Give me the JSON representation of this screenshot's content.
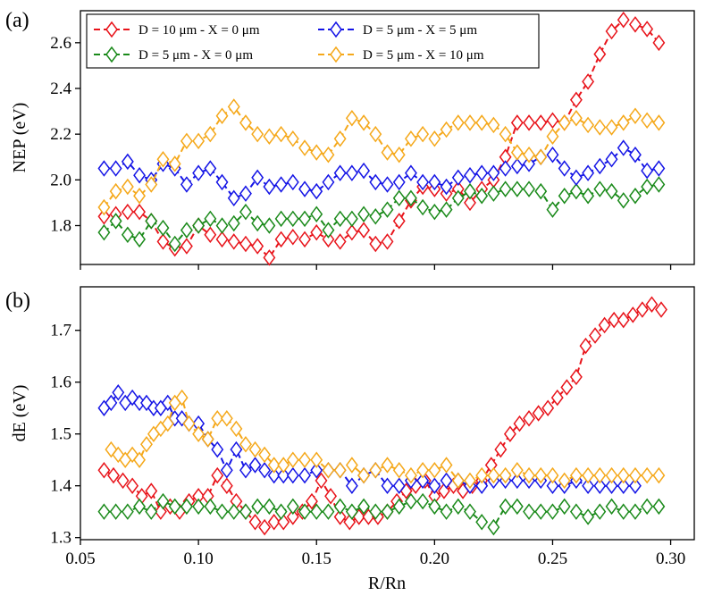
{
  "chart_data": {
    "type": "line",
    "xlabel": "R/Rn",
    "xlim": [
      0.05,
      0.31
    ],
    "x_ticks": [
      "0.05",
      "0.10",
      "0.15",
      "0.20",
      "0.25",
      "0.30"
    ],
    "legend": {
      "placement": "top-left",
      "entries": [
        {
          "label": "D = 10 μm - X = 0 μm",
          "color": "#e8131a"
        },
        {
          "label": "D = 5 μm - X = 0 μm",
          "color": "#1a8a1a"
        },
        {
          "label": "D = 5 μm - X = 5 μm",
          "color": "#1414e6"
        },
        {
          "label": "D = 5 μm - X = 10 μm",
          "color": "#f5a81a"
        }
      ]
    },
    "panels": [
      {
        "panel_label": "(a)",
        "ylabel": "NEP (eV)",
        "ylim": [
          1.63,
          2.74
        ],
        "y_ticks": [
          "1.8",
          "2.0",
          "2.2",
          "2.4",
          "2.6"
        ],
        "series": [
          {
            "name": "D = 10 μm - X = 0 μm",
            "color": "#e8131a",
            "x": [
              0.06,
              0.065,
              0.07,
              0.075,
              0.08,
              0.085,
              0.09,
              0.095,
              0.1,
              0.105,
              0.11,
              0.115,
              0.12,
              0.125,
              0.13,
              0.135,
              0.14,
              0.145,
              0.15,
              0.155,
              0.16,
              0.165,
              0.17,
              0.175,
              0.18,
              0.185,
              0.19,
              0.195,
              0.2,
              0.205,
              0.21,
              0.215,
              0.22,
              0.225,
              0.23,
              0.235,
              0.24,
              0.245,
              0.25,
              0.255,
              0.26,
              0.265,
              0.27,
              0.275,
              0.28,
              0.285,
              0.29,
              0.295
            ],
            "y": [
              1.84,
              1.85,
              1.86,
              1.86,
              1.82,
              1.73,
              1.7,
              1.71,
              1.8,
              1.76,
              1.74,
              1.73,
              1.72,
              1.71,
              1.66,
              1.74,
              1.75,
              1.74,
              1.77,
              1.74,
              1.73,
              1.77,
              1.78,
              1.72,
              1.73,
              1.82,
              1.91,
              1.97,
              1.96,
              1.94,
              1.96,
              1.9,
              1.96,
              2.0,
              2.1,
              2.25,
              2.25,
              2.25,
              2.26,
              2.25,
              2.35,
              2.43,
              2.55,
              2.65,
              2.7,
              2.68,
              2.66,
              2.6
            ]
          },
          {
            "name": "D = 5 μm - X = 0 μm",
            "color": "#1a8a1a",
            "x": [
              0.06,
              0.065,
              0.07,
              0.075,
              0.08,
              0.085,
              0.09,
              0.095,
              0.1,
              0.105,
              0.11,
              0.115,
              0.12,
              0.125,
              0.13,
              0.135,
              0.14,
              0.145,
              0.15,
              0.155,
              0.16,
              0.165,
              0.17,
              0.175,
              0.18,
              0.185,
              0.19,
              0.195,
              0.2,
              0.205,
              0.21,
              0.215,
              0.22,
              0.225,
              0.23,
              0.235,
              0.24,
              0.245,
              0.25,
              0.255,
              0.26,
              0.265,
              0.27,
              0.275,
              0.28,
              0.285,
              0.29,
              0.295
            ],
            "y": [
              1.77,
              1.82,
              1.76,
              1.74,
              1.82,
              1.79,
              1.72,
              1.78,
              1.8,
              1.83,
              1.8,
              1.81,
              1.86,
              1.81,
              1.8,
              1.83,
              1.83,
              1.83,
              1.85,
              1.78,
              1.83,
              1.83,
              1.85,
              1.84,
              1.87,
              1.92,
              1.92,
              1.88,
              1.86,
              1.87,
              1.92,
              1.95,
              1.93,
              1.94,
              1.96,
              1.96,
              1.96,
              1.95,
              1.87,
              1.93,
              1.95,
              1.93,
              1.96,
              1.95,
              1.91,
              1.93,
              1.97,
              1.98
            ]
          },
          {
            "name": "D = 5 μm - X = 5 μm",
            "color": "#1414e6",
            "x": [
              0.06,
              0.065,
              0.07,
              0.075,
              0.08,
              0.085,
              0.09,
              0.095,
              0.1,
              0.105,
              0.11,
              0.115,
              0.12,
              0.125,
              0.13,
              0.135,
              0.14,
              0.145,
              0.15,
              0.155,
              0.16,
              0.165,
              0.17,
              0.175,
              0.18,
              0.185,
              0.19,
              0.195,
              0.2,
              0.205,
              0.21,
              0.215,
              0.22,
              0.225,
              0.23,
              0.235,
              0.24,
              0.245,
              0.25,
              0.255,
              0.26,
              0.265,
              0.27,
              0.275,
              0.28,
              0.285,
              0.29,
              0.295
            ],
            "y": [
              2.05,
              2.05,
              2.08,
              2.02,
              2.0,
              2.07,
              2.05,
              1.98,
              2.03,
              2.05,
              1.99,
              1.92,
              1.94,
              2.01,
              1.97,
              1.98,
              1.99,
              1.96,
              1.95,
              1.99,
              2.03,
              2.03,
              2.04,
              1.99,
              1.98,
              1.99,
              2.03,
              1.99,
              1.99,
              1.97,
              2.01,
              2.02,
              2.03,
              2.03,
              2.05,
              2.06,
              2.07,
              2.1,
              2.11,
              2.05,
              2.01,
              2.03,
              2.06,
              2.09,
              2.14,
              2.11,
              2.04,
              2.05
            ]
          },
          {
            "name": "D = 5 μm - X = 10 μm",
            "color": "#f5a81a",
            "x": [
              0.06,
              0.065,
              0.07,
              0.075,
              0.08,
              0.085,
              0.09,
              0.095,
              0.1,
              0.105,
              0.11,
              0.115,
              0.12,
              0.125,
              0.13,
              0.135,
              0.14,
              0.145,
              0.15,
              0.155,
              0.16,
              0.165,
              0.17,
              0.175,
              0.18,
              0.185,
              0.19,
              0.195,
              0.2,
              0.205,
              0.21,
              0.215,
              0.22,
              0.225,
              0.23,
              0.235,
              0.24,
              0.245,
              0.25,
              0.255,
              0.26,
              0.265,
              0.27,
              0.275,
              0.28,
              0.285,
              0.29,
              0.295
            ],
            "y": [
              1.88,
              1.95,
              1.97,
              1.93,
              1.98,
              2.09,
              2.07,
              2.17,
              2.17,
              2.2,
              2.28,
              2.32,
              2.25,
              2.2,
              2.19,
              2.2,
              2.18,
              2.14,
              2.12,
              2.11,
              2.18,
              2.27,
              2.25,
              2.2,
              2.12,
              2.11,
              2.18,
              2.2,
              2.18,
              2.22,
              2.25,
              2.25,
              2.25,
              2.24,
              2.2,
              2.12,
              2.11,
              2.1,
              2.19,
              2.25,
              2.27,
              2.24,
              2.23,
              2.23,
              2.25,
              2.28,
              2.26,
              2.25
            ]
          }
        ]
      },
      {
        "panel_label": "(b)",
        "ylabel": "dE (eV)",
        "ylim": [
          1.296,
          1.784
        ],
        "y_ticks": [
          "1.3",
          "1.4",
          "1.5",
          "1.6",
          "1.7"
        ],
        "series": [
          {
            "name": "D = 10 μm - X = 0 μm",
            "color": "#e8131a",
            "x": [
              0.06,
              0.064,
              0.068,
              0.072,
              0.076,
              0.08,
              0.084,
              0.088,
              0.092,
              0.096,
              0.1,
              0.104,
              0.108,
              0.112,
              0.116,
              0.12,
              0.124,
              0.128,
              0.132,
              0.136,
              0.14,
              0.144,
              0.148,
              0.152,
              0.156,
              0.16,
              0.164,
              0.168,
              0.172,
              0.176,
              0.18,
              0.184,
              0.188,
              0.192,
              0.196,
              0.2,
              0.204,
              0.208,
              0.212,
              0.216,
              0.22,
              0.224,
              0.228,
              0.232,
              0.236,
              0.24,
              0.244,
              0.248,
              0.252,
              0.256,
              0.26,
              0.264,
              0.268,
              0.272,
              0.276,
              0.28,
              0.284,
              0.288,
              0.292,
              0.296
            ],
            "y": [
              1.43,
              1.42,
              1.41,
              1.4,
              1.38,
              1.39,
              1.35,
              1.36,
              1.35,
              1.37,
              1.38,
              1.38,
              1.42,
              1.4,
              1.37,
              1.35,
              1.33,
              1.32,
              1.33,
              1.33,
              1.34,
              1.35,
              1.37,
              1.41,
              1.38,
              1.34,
              1.33,
              1.34,
              1.34,
              1.34,
              1.35,
              1.37,
              1.39,
              1.4,
              1.41,
              1.38,
              1.39,
              1.4,
              1.39,
              1.4,
              1.41,
              1.44,
              1.47,
              1.5,
              1.52,
              1.53,
              1.54,
              1.55,
              1.57,
              1.59,
              1.61,
              1.67,
              1.69,
              1.71,
              1.72,
              1.72,
              1.73,
              1.74,
              1.75,
              1.74
            ]
          },
          {
            "name": "D = 5 μm - X = 0 μm",
            "color": "#1a8a1a",
            "x": [
              0.06,
              0.065,
              0.07,
              0.075,
              0.08,
              0.085,
              0.09,
              0.095,
              0.1,
              0.105,
              0.11,
              0.115,
              0.12,
              0.125,
              0.13,
              0.135,
              0.14,
              0.145,
              0.15,
              0.155,
              0.16,
              0.165,
              0.17,
              0.175,
              0.18,
              0.185,
              0.19,
              0.195,
              0.2,
              0.205,
              0.21,
              0.215,
              0.22,
              0.225,
              0.23,
              0.235,
              0.24,
              0.245,
              0.25,
              0.255,
              0.26,
              0.265,
              0.27,
              0.275,
              0.28,
              0.285,
              0.29,
              0.295
            ],
            "y": [
              1.35,
              1.35,
              1.35,
              1.36,
              1.35,
              1.37,
              1.36,
              1.36,
              1.36,
              1.36,
              1.35,
              1.35,
              1.35,
              1.36,
              1.36,
              1.35,
              1.36,
              1.35,
              1.35,
              1.35,
              1.36,
              1.35,
              1.36,
              1.35,
              1.35,
              1.36,
              1.37,
              1.37,
              1.36,
              1.35,
              1.36,
              1.35,
              1.33,
              1.32,
              1.36,
              1.36,
              1.35,
              1.35,
              1.35,
              1.36,
              1.35,
              1.34,
              1.35,
              1.36,
              1.35,
              1.35,
              1.36,
              1.36
            ]
          },
          {
            "name": "D = 5 μm - X = 5 μm",
            "color": "#1414e6",
            "x": [
              0.06,
              0.063,
              0.066,
              0.069,
              0.072,
              0.075,
              0.078,
              0.081,
              0.084,
              0.087,
              0.09,
              0.093,
              0.096,
              0.1,
              0.104,
              0.108,
              0.112,
              0.116,
              0.12,
              0.124,
              0.128,
              0.132,
              0.136,
              0.14,
              0.145,
              0.15,
              0.155,
              0.16,
              0.165,
              0.17,
              0.175,
              0.18,
              0.185,
              0.19,
              0.195,
              0.2,
              0.205,
              0.21,
              0.215,
              0.22,
              0.225,
              0.23,
              0.235,
              0.24,
              0.245,
              0.25,
              0.255,
              0.26,
              0.265,
              0.27,
              0.275,
              0.28,
              0.285
            ],
            "y": [
              1.55,
              1.56,
              1.58,
              1.56,
              1.57,
              1.56,
              1.56,
              1.55,
              1.55,
              1.56,
              1.53,
              1.53,
              1.52,
              1.52,
              1.49,
              1.47,
              1.43,
              1.47,
              1.43,
              1.44,
              1.43,
              1.42,
              1.42,
              1.42,
              1.42,
              1.43,
              1.43,
              1.43,
              1.4,
              1.42,
              1.43,
              1.4,
              1.4,
              1.41,
              1.41,
              1.4,
              1.41,
              1.41,
              1.4,
              1.4,
              1.41,
              1.41,
              1.41,
              1.41,
              1.41,
              1.4,
              1.4,
              1.41,
              1.4,
              1.4,
              1.4,
              1.4,
              1.4
            ]
          },
          {
            "name": "D = 5 μm - X = 10 μm",
            "color": "#f5a81a",
            "x": [
              0.063,
              0.066,
              0.069,
              0.072,
              0.075,
              0.078,
              0.081,
              0.084,
              0.087,
              0.09,
              0.093,
              0.096,
              0.1,
              0.104,
              0.108,
              0.112,
              0.116,
              0.12,
              0.124,
              0.128,
              0.132,
              0.136,
              0.14,
              0.145,
              0.15,
              0.155,
              0.16,
              0.165,
              0.17,
              0.175,
              0.18,
              0.185,
              0.19,
              0.195,
              0.2,
              0.205,
              0.21,
              0.215,
              0.22,
              0.225,
              0.23,
              0.235,
              0.24,
              0.245,
              0.25,
              0.255,
              0.26,
              0.265,
              0.27,
              0.275,
              0.28,
              0.285,
              0.29,
              0.295
            ],
            "y": [
              1.47,
              1.46,
              1.45,
              1.46,
              1.45,
              1.48,
              1.5,
              1.51,
              1.52,
              1.56,
              1.57,
              1.52,
              1.5,
              1.49,
              1.53,
              1.53,
              1.51,
              1.48,
              1.47,
              1.46,
              1.44,
              1.44,
              1.45,
              1.45,
              1.45,
              1.43,
              1.43,
              1.44,
              1.42,
              1.43,
              1.44,
              1.43,
              1.42,
              1.43,
              1.43,
              1.44,
              1.41,
              1.41,
              1.42,
              1.42,
              1.42,
              1.43,
              1.42,
              1.42,
              1.42,
              1.41,
              1.42,
              1.42,
              1.42,
              1.42,
              1.42,
              1.42,
              1.42,
              1.42
            ]
          }
        ]
      }
    ]
  }
}
